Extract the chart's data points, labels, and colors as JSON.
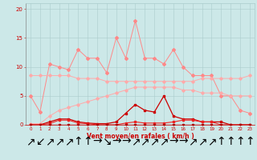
{
  "x": [
    0,
    1,
    2,
    3,
    4,
    5,
    6,
    7,
    8,
    9,
    10,
    11,
    12,
    13,
    14,
    15,
    16,
    17,
    18,
    19,
    20,
    21,
    22,
    23
  ],
  "spiky_pink": [
    5.0,
    2.2,
    10.5,
    10.0,
    9.5,
    13.0,
    11.5,
    11.5,
    9.0,
    15.0,
    11.5,
    18.0,
    11.5,
    11.5,
    10.5,
    13.0,
    10.0,
    8.5,
    8.5,
    8.5,
    5.0,
    5.0,
    2.5,
    2.0
  ],
  "flat_pink_top": [
    8.5,
    8.5,
    8.5,
    8.5,
    8.5,
    8.0,
    8.0,
    8.0,
    7.5,
    7.5,
    7.5,
    7.5,
    7.5,
    7.5,
    7.5,
    7.5,
    7.5,
    7.5,
    8.0,
    8.0,
    8.0,
    8.0,
    8.0,
    8.5
  ],
  "rising_pink": [
    0.2,
    0.2,
    1.5,
    2.5,
    3.0,
    3.5,
    4.0,
    4.5,
    5.0,
    5.5,
    6.0,
    6.5,
    6.5,
    6.5,
    6.5,
    6.5,
    6.0,
    6.0,
    5.5,
    5.5,
    5.5,
    5.0,
    5.0,
    5.0
  ],
  "med_red": [
    0.0,
    0.0,
    0.5,
    1.0,
    1.0,
    0.5,
    0.3,
    0.2,
    0.2,
    0.5,
    2.0,
    3.5,
    2.5,
    2.2,
    5.0,
    1.5,
    1.0,
    1.0,
    0.5,
    0.5,
    0.5,
    0.0,
    0.0,
    0.0
  ],
  "low_red1": [
    0.0,
    0.0,
    0.2,
    0.8,
    0.8,
    0.3,
    0.2,
    0.0,
    0.0,
    0.0,
    0.3,
    0.5,
    0.3,
    0.3,
    0.3,
    0.5,
    0.8,
    0.8,
    0.5,
    0.5,
    0.0,
    0.0,
    0.0,
    0.0
  ],
  "flat_red": [
    0.0,
    0.0,
    0.0,
    0.0,
    0.0,
    0.0,
    0.0,
    0.0,
    0.0,
    0.0,
    0.0,
    0.0,
    0.0,
    0.0,
    0.0,
    0.0,
    0.0,
    0.0,
    0.0,
    0.0,
    0.0,
    0.0,
    0.0,
    0.0
  ],
  "background_color": "#cce8e8",
  "grid_color": "#aacccc",
  "spiky_pink_color": "#ff8888",
  "flat_pink_color": "#ffaaaa",
  "rising_pink_color": "#ffaaaa",
  "med_red_color": "#cc0000",
  "low_red_color": "#ee2222",
  "flat_red_color": "#aa0000",
  "xlabel": "Vent moyen/en rafales ( km/h )",
  "ylim": [
    0,
    21
  ],
  "yticks": [
    0,
    5,
    10,
    15,
    20
  ],
  "xticks": [
    0,
    1,
    2,
    3,
    4,
    5,
    6,
    7,
    8,
    9,
    10,
    11,
    12,
    13,
    14,
    15,
    16,
    17,
    18,
    19,
    20,
    21,
    22,
    23
  ],
  "arrows": [
    "↗",
    "↙",
    "↗",
    "↗",
    "↗",
    "↑",
    "↑",
    "→",
    "↘",
    "→",
    "→",
    "↗",
    "↗",
    "↗",
    "↗",
    "→",
    "→",
    "↗",
    "↗",
    "↗",
    "↑",
    "↑",
    "↑",
    "↑"
  ]
}
